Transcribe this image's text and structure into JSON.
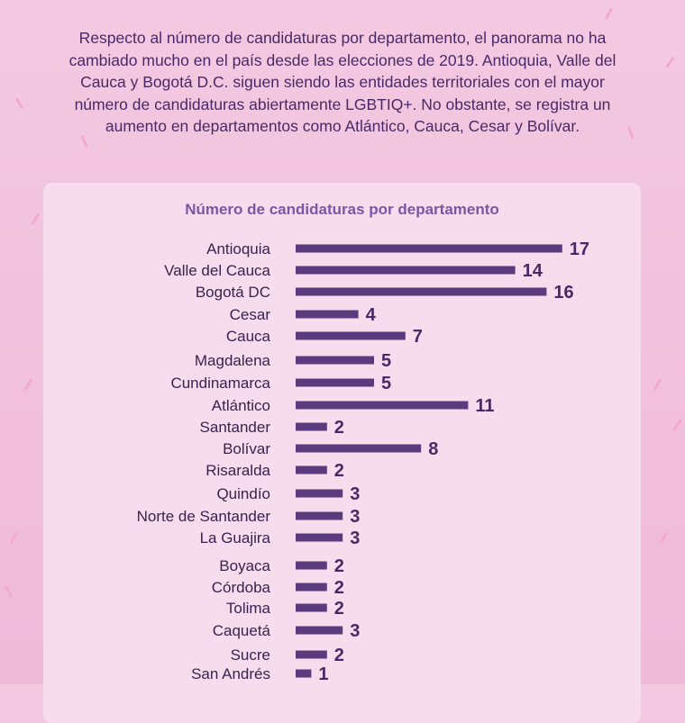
{
  "intro_text": "Respecto al número de candidaturas por departamento, el panorama no ha cambiado mucho en el país desde las elecciones de 2019. Antioquia, Valle del Cauca y Bogotá D.C. siguen siendo las entidades territoriales con el mayor número de candidaturas abiertamente LGBTIQ+. No obstante, se registra un aumento en departamentos como Atlántico, Cauca, Cesar y Bolívar.",
  "colors": {
    "bar": "#5b3a7e",
    "label": "#3a2250",
    "value": "#4a2868",
    "title": "#7c55a6"
  },
  "chart_data": {
    "type": "bar",
    "orientation": "horizontal",
    "title": "Número de candidaturas por departamento",
    "categories": [
      "Antioquia",
      "Valle del Cauca",
      "Bogotá DC",
      "Cesar",
      "Cauca",
      "Magdalena",
      "Cundinamarca",
      "Atlántico",
      "Santander",
      "Bolívar",
      "Risaralda",
      "Quindío",
      "Norte de Santander",
      "La Guajira",
      "Boyaca",
      "Córdoba",
      "Tolima",
      "Caquetá",
      "Sucre",
      "San Andrés"
    ],
    "values": [
      17,
      14,
      16,
      4,
      7,
      5,
      5,
      11,
      2,
      8,
      2,
      3,
      3,
      3,
      2,
      2,
      2,
      3,
      2,
      1
    ],
    "value_labels": [
      "17",
      "14",
      "16",
      "4",
      "7",
      "5",
      "5",
      "11",
      "2",
      "8",
      "2",
      "3",
      "3",
      "3",
      "2",
      "2",
      "2",
      "3",
      "2",
      "1"
    ],
    "xlim": [
      0,
      17
    ],
    "grid": false,
    "legend": "none"
  }
}
